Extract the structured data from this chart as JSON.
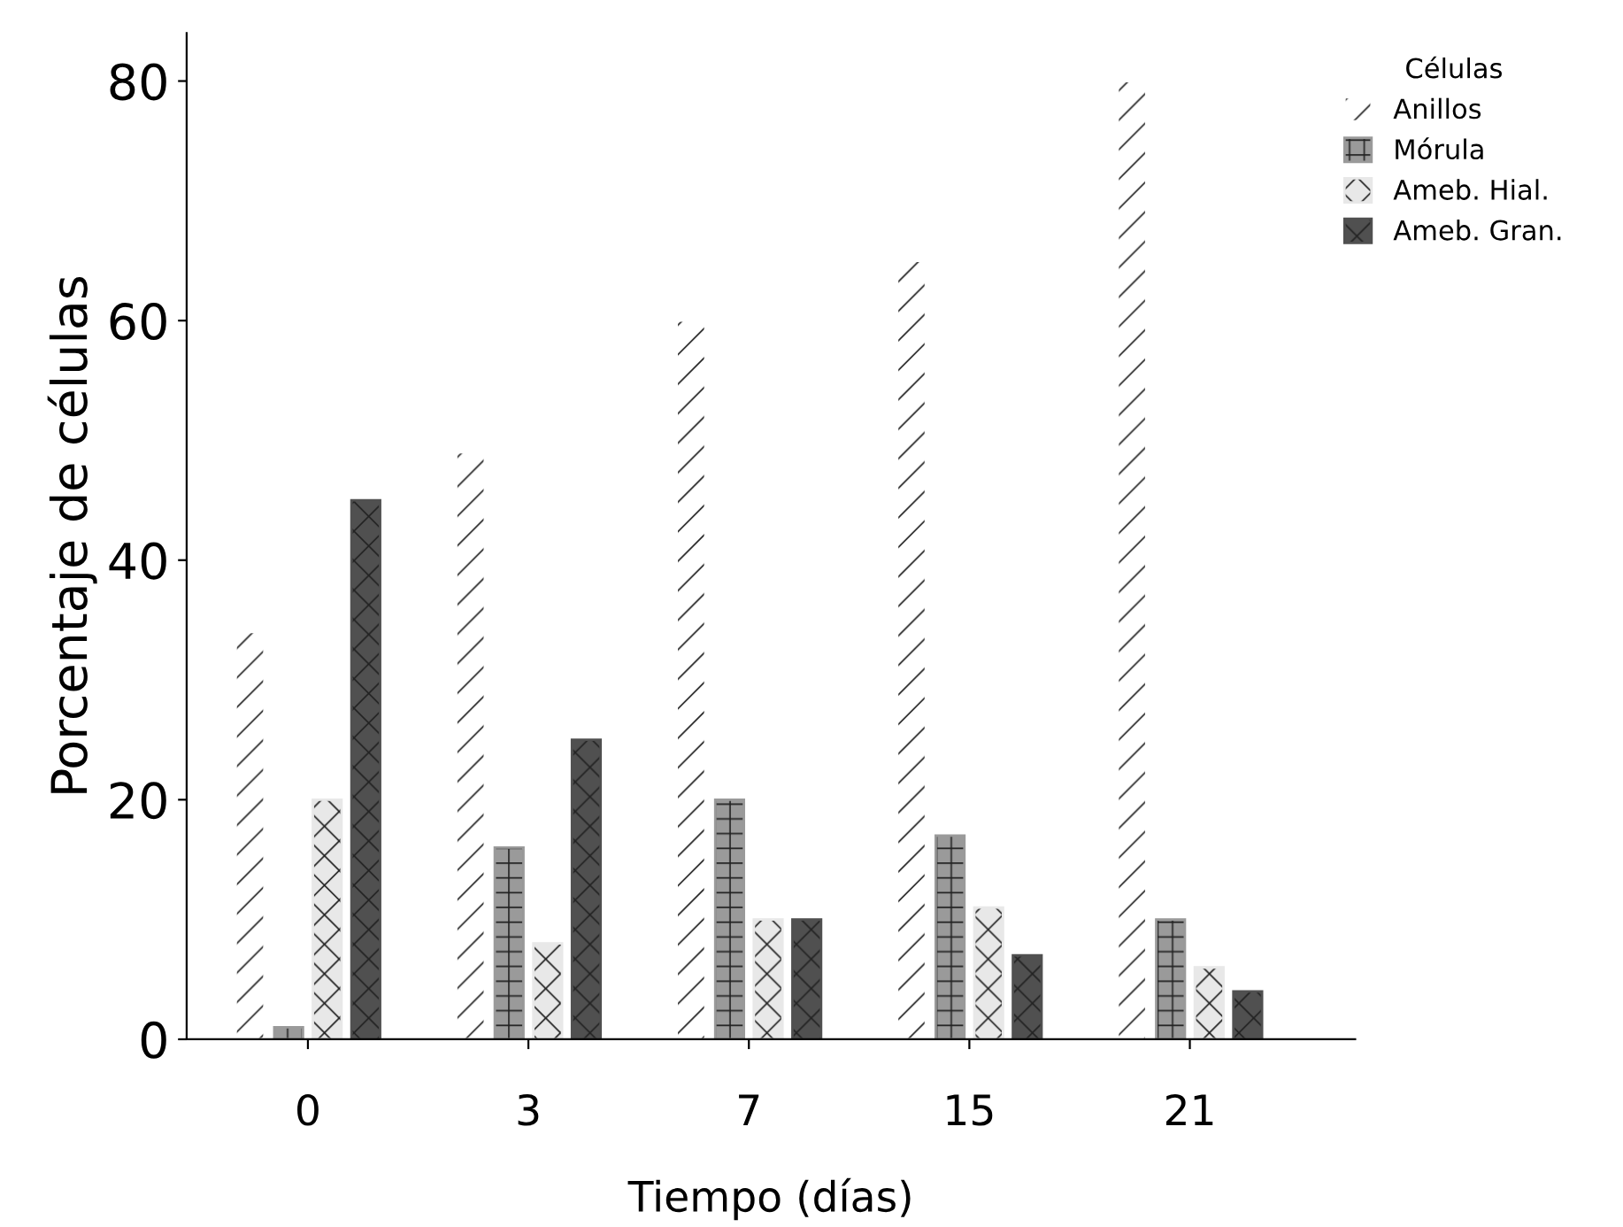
{
  "chart_data": {
    "type": "bar",
    "xlabel": "Tiempo (días)",
    "ylabel": "Porcentaje de células",
    "legend_title": "Células",
    "categories": [
      "0",
      "3",
      "7",
      "15",
      "21"
    ],
    "series": [
      {
        "name": "Anillos",
        "color": "#ffffff",
        "values": [
          34,
          49,
          60,
          65,
          80
        ]
      },
      {
        "name": "Mórula",
        "color": "#9a9a9a",
        "values": [
          1,
          16,
          20,
          17,
          10
        ]
      },
      {
        "name": "Ameb. Hial.",
        "color": "#e8e8e8",
        "values": [
          20,
          8,
          10,
          11,
          6
        ]
      },
      {
        "name": "Ameb. Gran.",
        "color": "#505050",
        "values": [
          45,
          25,
          10,
          7,
          4
        ]
      }
    ],
    "ylim": [
      0,
      84
    ],
    "yticks": [
      0,
      20,
      40,
      60,
      80
    ],
    "grid": false,
    "legend": "top right"
  }
}
